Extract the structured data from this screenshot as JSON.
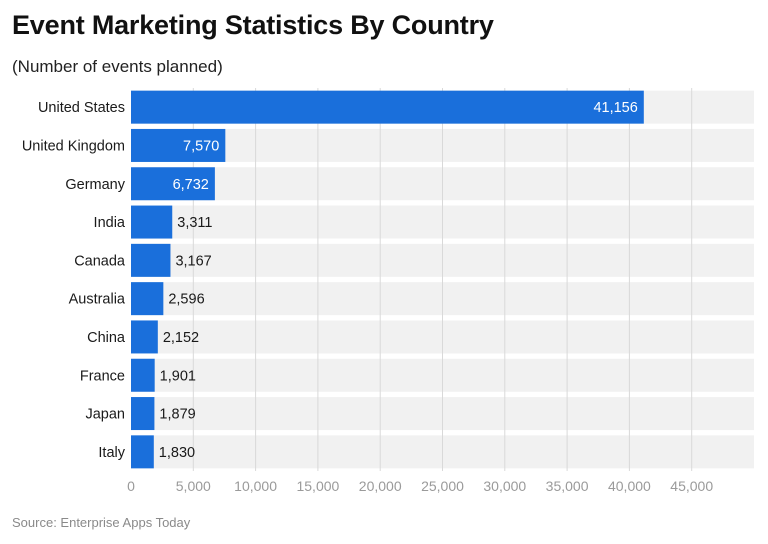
{
  "chart_data": {
    "type": "bar",
    "orientation": "horizontal",
    "title": "Event Marketing Statistics By Country",
    "subtitle": "(Number of events planned)",
    "categories": [
      "United States",
      "United Kingdom",
      "Germany",
      "India",
      "Canada",
      "Australia",
      "China",
      "France",
      "Japan",
      "Italy"
    ],
    "values": [
      41156,
      7570,
      6732,
      3311,
      3167,
      2596,
      2152,
      1901,
      1879,
      1830
    ],
    "value_labels": [
      "41,156",
      "7,570",
      "6,732",
      "3,311",
      "3,167",
      "2,596",
      "2,152",
      "1,901",
      "1,879",
      "1,830"
    ],
    "xlim": [
      0,
      50000
    ],
    "xticks": [
      0,
      5000,
      10000,
      15000,
      20000,
      25000,
      30000,
      35000,
      40000,
      45000
    ],
    "xtick_labels": [
      "0",
      "5,000",
      "10,000",
      "15,000",
      "20,000",
      "25,000",
      "30,000",
      "35,000",
      "40,000",
      "45,000"
    ],
    "grid": true,
    "colors": {
      "bar": "#1a6fdb",
      "band": "#f1f1f1",
      "grid": "#d9d9d9",
      "tick": "#9a9a9a"
    }
  },
  "source": "Source: Enterprise Apps Today"
}
